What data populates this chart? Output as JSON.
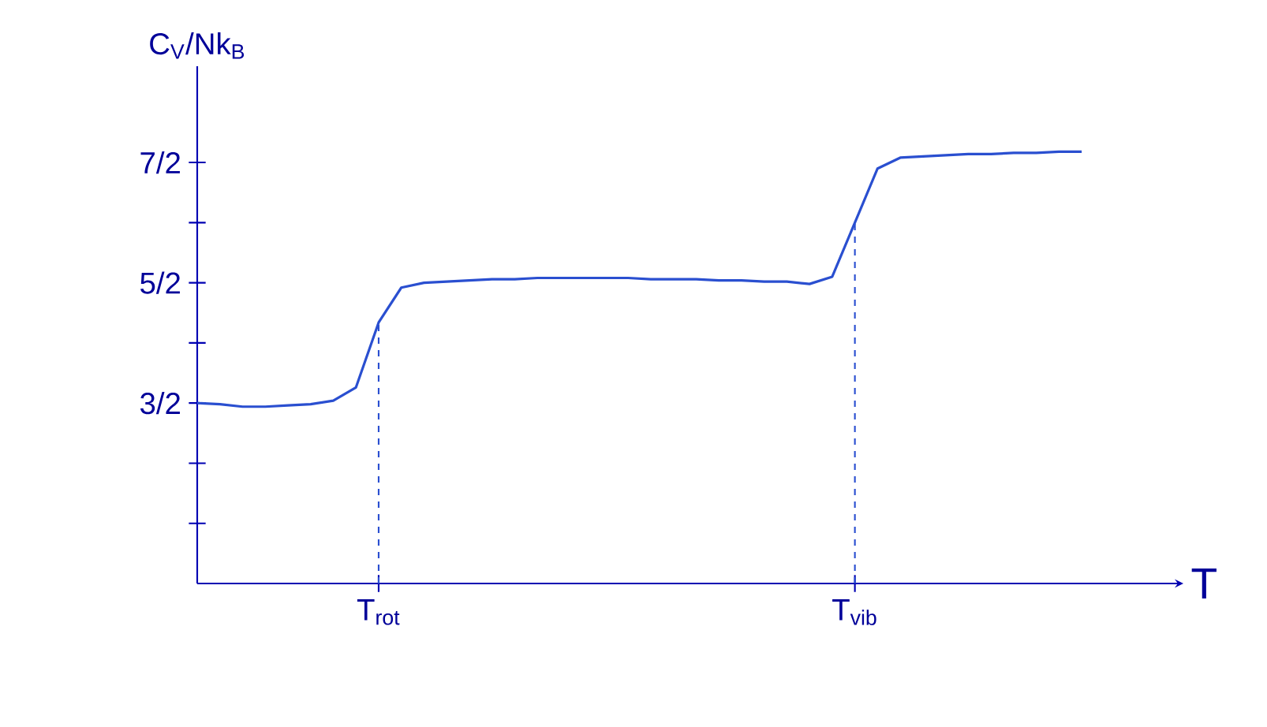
{
  "chart_data": {
    "type": "line",
    "xlabel": "T",
    "ylabel": "C$_{V}$/Nk$_{B}$",
    "categories": [
      null,
      null,
      null,
      null,
      null,
      null,
      null,
      null,
      "T$_{rot}$",
      null,
      null,
      null,
      null,
      null,
      null,
      null,
      null,
      null,
      null,
      null,
      null,
      null,
      null,
      null,
      null,
      null,
      null,
      null,
      null,
      "T$_{vib}$",
      null,
      null,
      null,
      null,
      null,
      null,
      null,
      null,
      null,
      null
    ],
    "series": [
      {
        "color": "#2a4fd0",
        "values": [
          1.5,
          1.49,
          1.47,
          1.47,
          1.48,
          1.49,
          1.52,
          1.63,
          2.17,
          2.46,
          2.5,
          2.51,
          2.52,
          2.53,
          2.53,
          2.54,
          2.54,
          2.54,
          2.54,
          2.54,
          2.53,
          2.53,
          2.53,
          2.52,
          2.52,
          2.51,
          2.51,
          2.49,
          2.55,
          3.0,
          3.45,
          3.54,
          3.55,
          3.56,
          3.57,
          3.57,
          3.58,
          3.58,
          3.59,
          3.59
        ]
      }
    ],
    "ylim": [
      0,
      4.3
    ],
    "yticks": [
      {
        "value": 0.5,
        "label": null
      },
      {
        "value": 1,
        "label": null
      },
      {
        "value": 1.5,
        "label": "3/2"
      },
      {
        "value": 2,
        "label": null
      },
      {
        "value": 2.5,
        "label": "5/2"
      },
      {
        "value": 3,
        "label": null
      },
      {
        "value": 3.5,
        "label": "7/2"
      }
    ],
    "ref_lines": [
      {
        "axis": "x",
        "value": "T$_{rot}$",
        "color": "#2a4fd0",
        "line_style": "dashed"
      },
      {
        "axis": "x",
        "value": "T$_{vib}$",
        "color": "#2a4fd0",
        "line_style": "dashed"
      }
    ],
    "marker": "none"
  }
}
